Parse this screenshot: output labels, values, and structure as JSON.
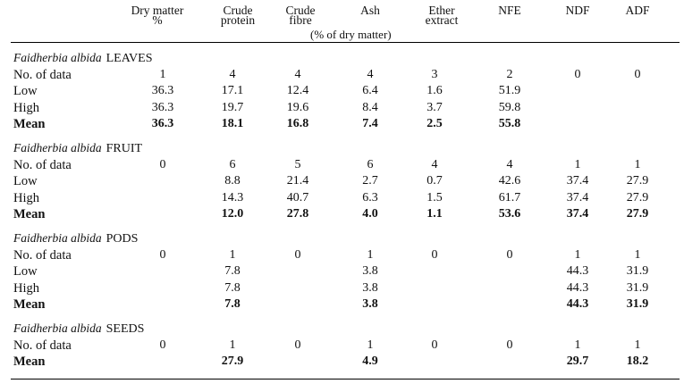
{
  "headers": [
    {
      "l1": "Dry matter",
      "l2": "%"
    },
    {
      "l1": "Crude",
      "l2": "protein"
    },
    {
      "l1": "Crude",
      "l2": "fibre"
    },
    {
      "l1": "Ash",
      "l2": ""
    },
    {
      "l1": "Ether",
      "l2": "extract"
    },
    {
      "l1": "NFE",
      "l2": ""
    },
    {
      "l1": "NDF",
      "l2": ""
    },
    {
      "l1": "ADF",
      "l2": ""
    }
  ],
  "unit_note": "(% of dry matter)",
  "sections": [
    {
      "species": "Faidherbia albida",
      "part": "LEAVES",
      "rows": [
        {
          "label": "No. of data",
          "values": [
            "1",
            "4",
            "4",
            "4",
            "3",
            "2",
            "0",
            "0"
          ]
        },
        {
          "label": "Low",
          "values": [
            "36.3",
            "17.1",
            "12.4",
            "6.4",
            "1.6",
            "51.9",
            "",
            ""
          ]
        },
        {
          "label": "High",
          "values": [
            "36.3",
            "19.7",
            "19.6",
            "8.4",
            "3.7",
            "59.8",
            "",
            ""
          ]
        },
        {
          "label": "Mean",
          "values": [
            "36.3",
            "18.1",
            "16.8",
            "7.4",
            "2.5",
            "55.8",
            "",
            ""
          ]
        }
      ]
    },
    {
      "species": "Faidherbia albida",
      "part": "FRUIT",
      "rows": [
        {
          "label": "No. of data",
          "values": [
            "0",
            "6",
            "5",
            "6",
            "4",
            "4",
            "1",
            "1"
          ]
        },
        {
          "label": "Low",
          "values": [
            "",
            "8.8",
            "21.4",
            "2.7",
            "0.7",
            "42.6",
            "37.4",
            "27.9"
          ]
        },
        {
          "label": "High",
          "values": [
            "",
            "14.3",
            "40.7",
            "6.3",
            "1.5",
            "61.7",
            "37.4",
            "27.9"
          ]
        },
        {
          "label": "Mean",
          "values": [
            "",
            "12.0",
            "27.8",
            "4.0",
            "1.1",
            "53.6",
            "37.4",
            "27.9"
          ]
        }
      ]
    },
    {
      "species": "Faidherbia albida",
      "part": "PODS",
      "rows": [
        {
          "label": "No. of data",
          "values": [
            "0",
            "1",
            "0",
            "1",
            "0",
            "0",
            "1",
            "1"
          ]
        },
        {
          "label": "Low",
          "values": [
            "",
            "7.8",
            "",
            "3.8",
            "",
            "",
            "44.3",
            "31.9"
          ]
        },
        {
          "label": "High",
          "values": [
            "",
            "7.8",
            "",
            "3.8",
            "",
            "",
            "44.3",
            "31.9"
          ]
        },
        {
          "label": "Mean",
          "values": [
            "",
            "7.8",
            "",
            "3.8",
            "",
            "",
            "44.3",
            "31.9"
          ]
        }
      ]
    },
    {
      "species": "Faidherbia albida",
      "part": "SEEDS",
      "rows": [
        {
          "label": "No. of data",
          "values": [
            "0",
            "1",
            "0",
            "1",
            "0",
            "0",
            "1",
            "1"
          ]
        },
        {
          "label": "Mean",
          "values": [
            "",
            "27.9",
            "",
            "4.9",
            "",
            "",
            "29.7",
            "18.2"
          ]
        }
      ]
    }
  ]
}
